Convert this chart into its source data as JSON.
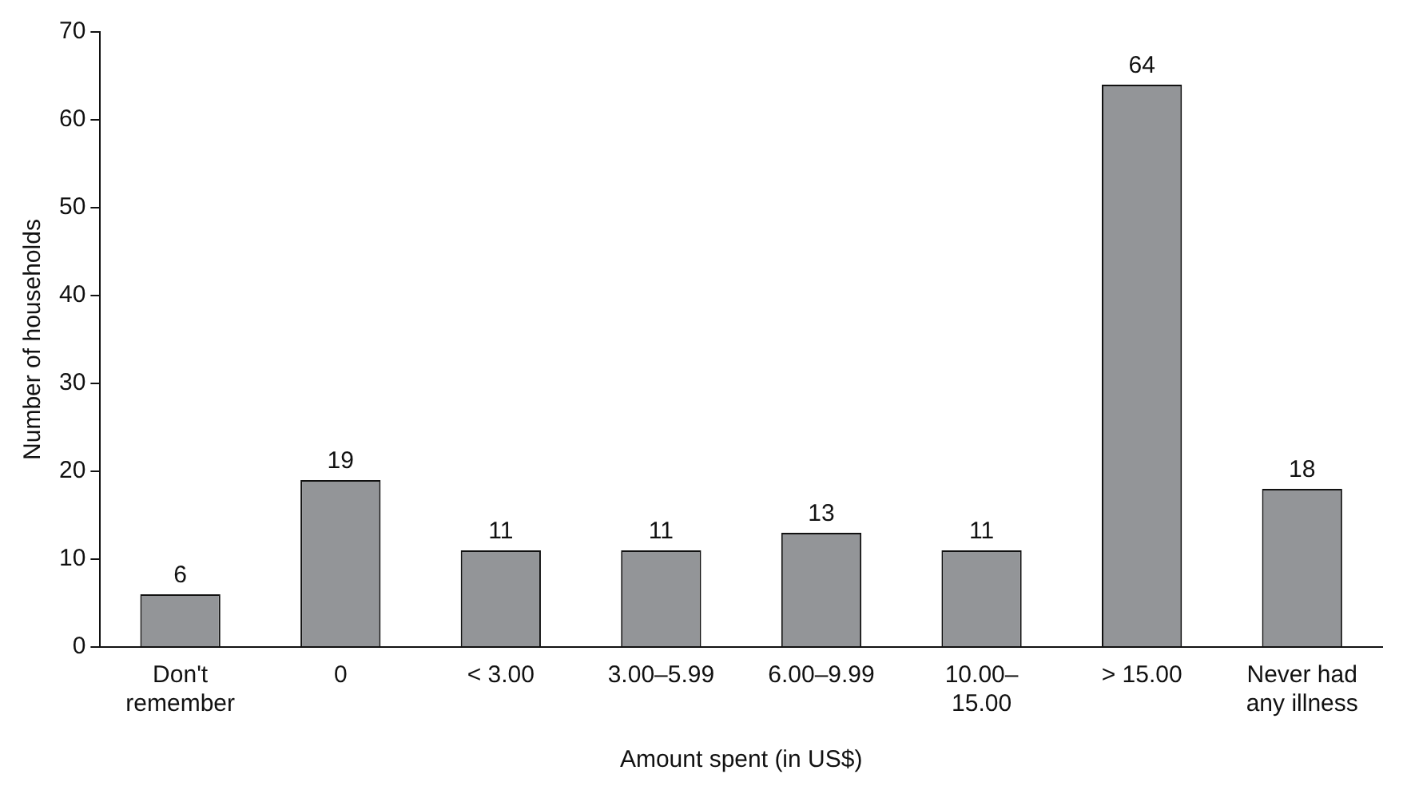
{
  "chart_data": {
    "type": "bar",
    "xlabel": "Amount spent (in US$)",
    "ylabel": "Number of households",
    "categories": [
      "Don't\nremember",
      "0",
      "< 3.00",
      "3.00–5.99",
      "6.00–9.99",
      "10.00–\n15.00",
      "> 15.00",
      "Never had\nany illness"
    ],
    "values": [
      6,
      19,
      11,
      11,
      13,
      11,
      64,
      18
    ],
    "color": "#939598",
    "ylim": [
      0,
      70
    ],
    "yticks": [
      0,
      10,
      20,
      30,
      40,
      50,
      60,
      70
    ],
    "grid": false,
    "legend": false,
    "data_labels": true
  }
}
